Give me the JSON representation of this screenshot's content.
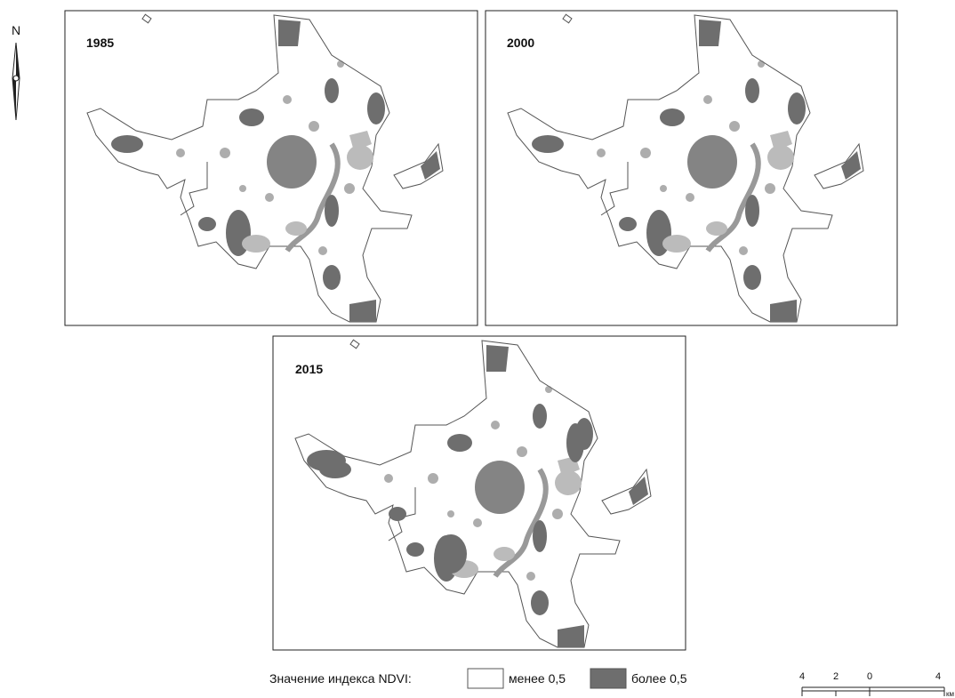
{
  "north": "N",
  "panels": [
    {
      "year": "1985"
    },
    {
      "year": "2000"
    },
    {
      "year": "2015"
    }
  ],
  "legend": {
    "title": "Значение индекса NDVI:",
    "items": [
      "менее 0,5",
      "более 0,5"
    ]
  },
  "scale_bar": {
    "labels": [
      "4",
      "2",
      "0",
      "4"
    ],
    "unit": "км"
  }
}
